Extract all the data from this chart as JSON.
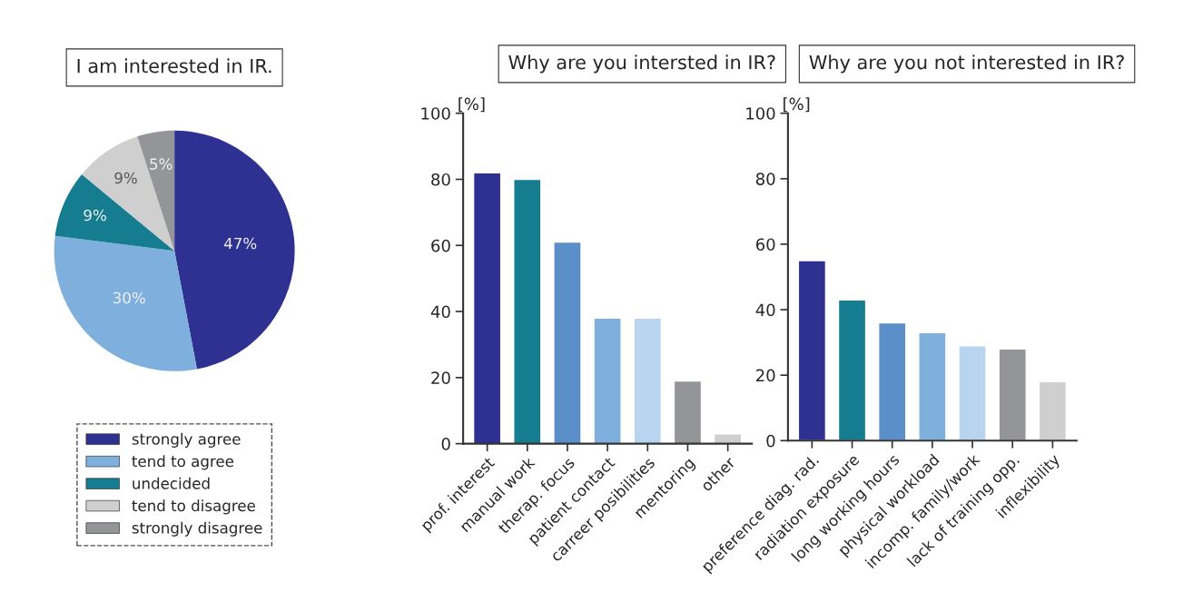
{
  "chart_data": [
    {
      "type": "pie",
      "title": "I am interested in IR.",
      "categories": [
        "strongly agree",
        "tend to agree",
        "undecided",
        "tend to disagree",
        "strongly disagree"
      ],
      "values": [
        47,
        30,
        9,
        9,
        5
      ],
      "colors": [
        "#2e3192",
        "#7fb0dd",
        "#157d8f",
        "#cfcfcf",
        "#939598"
      ],
      "value_labels": [
        "47%",
        "30%",
        "9%",
        "9%",
        "5%"
      ],
      "legend": "bottom"
    },
    {
      "type": "bar",
      "title": "Why are you intersted in IR?",
      "ylabel": "[%]",
      "categories": [
        "prof. interest",
        "manual work",
        "therap. focus",
        "patient contact",
        "carreer posibilities",
        "mentoring",
        "other"
      ],
      "values": [
        82,
        80,
        61,
        38,
        38,
        19,
        3
      ],
      "colors": [
        "#2e3192",
        "#157d8f",
        "#5b8fca",
        "#7fb0dd",
        "#b8d4ef",
        "#939598",
        "#cfcfcf"
      ],
      "ylim": [
        0,
        100
      ],
      "yticks": [
        0,
        20,
        40,
        60,
        80,
        100
      ],
      "grid": false
    },
    {
      "type": "bar",
      "title": "Why are you not interested in IR?",
      "ylabel": "[%]",
      "categories": [
        "preference diag. rad.",
        "radiation exposure",
        "long working hours",
        "physical workload",
        "incomp. family/work",
        "lack of training opp.",
        "inflexibility"
      ],
      "values": [
        55,
        43,
        36,
        33,
        29,
        28,
        18
      ],
      "colors": [
        "#2e3192",
        "#157d8f",
        "#5b8fca",
        "#7fb0dd",
        "#b8d4ef",
        "#939598",
        "#cfcfcf"
      ],
      "ylim": [
        0,
        100
      ],
      "yticks": [
        0,
        20,
        40,
        60,
        80,
        100
      ],
      "grid": false
    }
  ]
}
